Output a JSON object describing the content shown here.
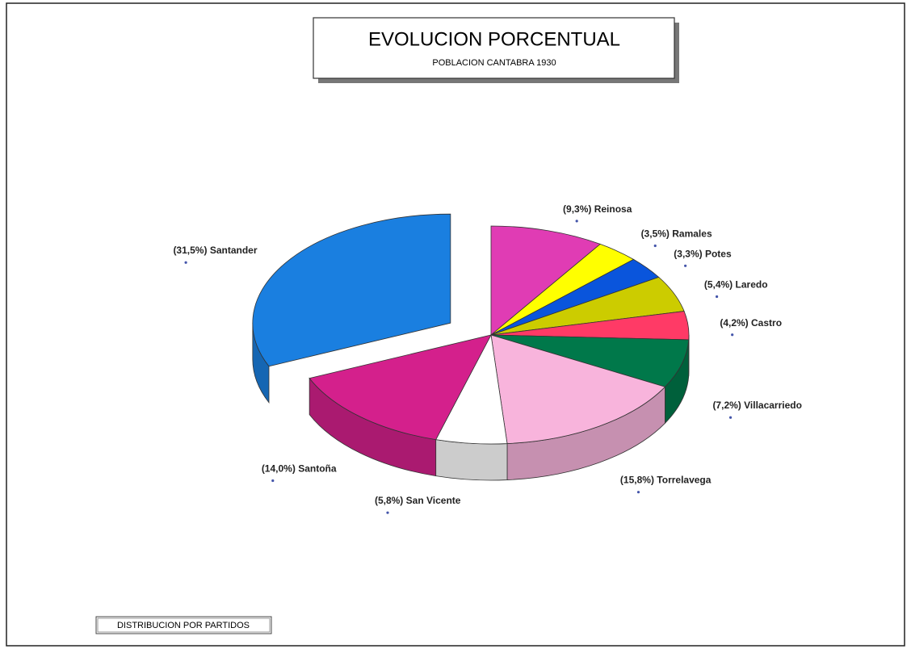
{
  "chart_data": {
    "type": "pie",
    "title": "EVOLUCION PORCENTUAL",
    "subtitle": "POBLACION CANTABRA 1930",
    "footer": "DISTRIBUCION POR PARTIDOS",
    "categories": [
      "Reinosa",
      "Ramales",
      "Potes",
      "Laredo",
      "Castro",
      "Villacarriedo",
      "Torrelavega",
      "San Vicente",
      "Santoña",
      "Santander"
    ],
    "values": [
      9.3,
      3.5,
      3.3,
      5.4,
      4.2,
      7.2,
      15.8,
      5.8,
      14.0,
      31.5
    ],
    "value_labels": [
      "(9,3%)",
      "(3,5%)",
      "(3,3%)",
      "(5,4%)",
      "(4,2%)",
      "(7,2%)",
      "(15,8%)",
      "(5,8%)",
      "(14,0%)",
      "(31,5%)"
    ],
    "colors": [
      "#e03cb4",
      "#ffff00",
      "#0a55dc",
      "#cccc00",
      "#ff3a66",
      "#00784a",
      "#f8b4dc",
      "#ffffff",
      "#d4208c",
      "#1a7fe0"
    ],
    "exploded": [
      9
    ]
  }
}
